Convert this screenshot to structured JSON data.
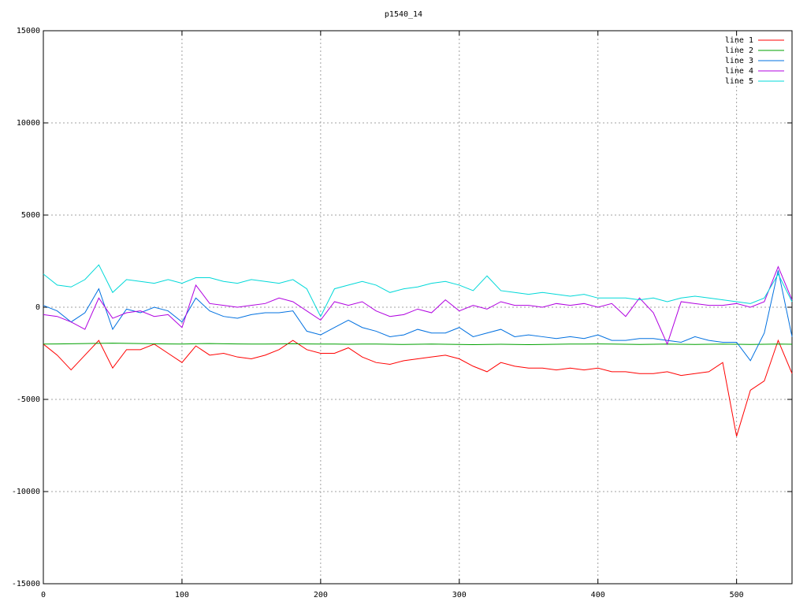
{
  "chart_data": {
    "type": "line",
    "title": "p1540_14",
    "grid": true,
    "legend": "upper right",
    "xlim": [
      0,
      540
    ],
    "ylim": [
      -15000,
      15000
    ],
    "xticks": [
      0,
      100,
      200,
      300,
      400,
      500
    ],
    "yticks": [
      -15000,
      -10000,
      -5000,
      0,
      5000,
      10000,
      15000
    ],
    "x": [
      0,
      10,
      20,
      30,
      40,
      50,
      60,
      70,
      80,
      90,
      100,
      110,
      120,
      130,
      140,
      150,
      160,
      170,
      180,
      190,
      200,
      210,
      220,
      230,
      240,
      250,
      260,
      270,
      280,
      290,
      300,
      310,
      320,
      330,
      340,
      350,
      360,
      370,
      380,
      390,
      400,
      410,
      420,
      430,
      440,
      450,
      460,
      470,
      480,
      490,
      500,
      510,
      520,
      530,
      540
    ],
    "series": [
      {
        "name": "line 1",
        "color": "#ff0000",
        "values": [
          -2000,
          -2600,
          -3400,
          -2600,
          -1800,
          -3300,
          -2300,
          -2300,
          -2000,
          -2500,
          -3000,
          -2100,
          -2600,
          -2500,
          -2700,
          -2800,
          -2600,
          -2300,
          -1800,
          -2300,
          -2500,
          -2500,
          -2200,
          -2700,
          -3000,
          -3100,
          -2900,
          -2800,
          -2700,
          -2600,
          -2800,
          -3200,
          -3500,
          -3000,
          -3200,
          -3300,
          -3300,
          -3400,
          -3300,
          -3400,
          -3300,
          -3500,
          -3500,
          -3600,
          -3600,
          -3500,
          -3700,
          -3600,
          -3500,
          -3000,
          -7000,
          -4500,
          -4000,
          -1800,
          -3600
        ]
      },
      {
        "name": "line 2",
        "color": "#00a000",
        "values": [
          -2000,
          -1990,
          -1980,
          -1970,
          -1960,
          -1950,
          -1960,
          -1970,
          -1980,
          -1990,
          -2000,
          -1980,
          -1970,
          -1980,
          -1990,
          -2000,
          -2000,
          -1990,
          -1980,
          -1990,
          -2000,
          -2000,
          -2010,
          -2000,
          -2000,
          -2010,
          -2020,
          -2010,
          -2000,
          -2010,
          -2020,
          -2030,
          -2020,
          -2010,
          -2020,
          -2030,
          -2020,
          -2010,
          -2000,
          -2000,
          -1990,
          -2000,
          -2010,
          -2020,
          -2010,
          -2000,
          -2010,
          -2020,
          -2010,
          -2000,
          -2010,
          -2020,
          -2010,
          -2000,
          -2010
        ]
      },
      {
        "name": "line 3",
        "color": "#0070e0",
        "values": [
          100,
          -200,
          -800,
          -300,
          1000,
          -1200,
          -100,
          -300,
          0,
          -200,
          -800,
          500,
          -200,
          -500,
          -600,
          -400,
          -300,
          -300,
          -200,
          -1300,
          -1500,
          -1100,
          -700,
          -1100,
          -1300,
          -1600,
          -1500,
          -1200,
          -1400,
          -1400,
          -1100,
          -1600,
          -1400,
          -1200,
          -1600,
          -1500,
          -1600,
          -1700,
          -1600,
          -1700,
          -1500,
          -1800,
          -1800,
          -1700,
          -1700,
          -1800,
          -1900,
          -1600,
          -1800,
          -1900,
          -1900,
          -2900,
          -1400,
          2000,
          -1600
        ]
      },
      {
        "name": "line 4",
        "color": "#b000e0",
        "values": [
          -400,
          -500,
          -800,
          -1200,
          500,
          -600,
          -300,
          -200,
          -500,
          -400,
          -1100,
          1200,
          200,
          100,
          0,
          100,
          200,
          500,
          300,
          -200,
          -700,
          300,
          100,
          300,
          -200,
          -500,
          -400,
          -100,
          -300,
          400,
          -200,
          100,
          -100,
          300,
          100,
          100,
          0,
          200,
          100,
          200,
          0,
          200,
          -500,
          500,
          -300,
          -2000,
          300,
          200,
          100,
          100,
          200,
          0,
          300,
          2200,
          400
        ]
      },
      {
        "name": "line 5",
        "color": "#00d8d8",
        "values": [
          1800,
          1200,
          1100,
          1500,
          2300,
          800,
          1500,
          1400,
          1300,
          1500,
          1300,
          1600,
          1600,
          1400,
          1300,
          1500,
          1400,
          1300,
          1500,
          1000,
          -500,
          1000,
          1200,
          1400,
          1200,
          800,
          1000,
          1100,
          1300,
          1400,
          1200,
          900,
          1700,
          900,
          800,
          700,
          800,
          700,
          600,
          700,
          500,
          500,
          500,
          400,
          500,
          300,
          500,
          600,
          500,
          400,
          300,
          200,
          500,
          1800,
          300
        ]
      }
    ]
  }
}
